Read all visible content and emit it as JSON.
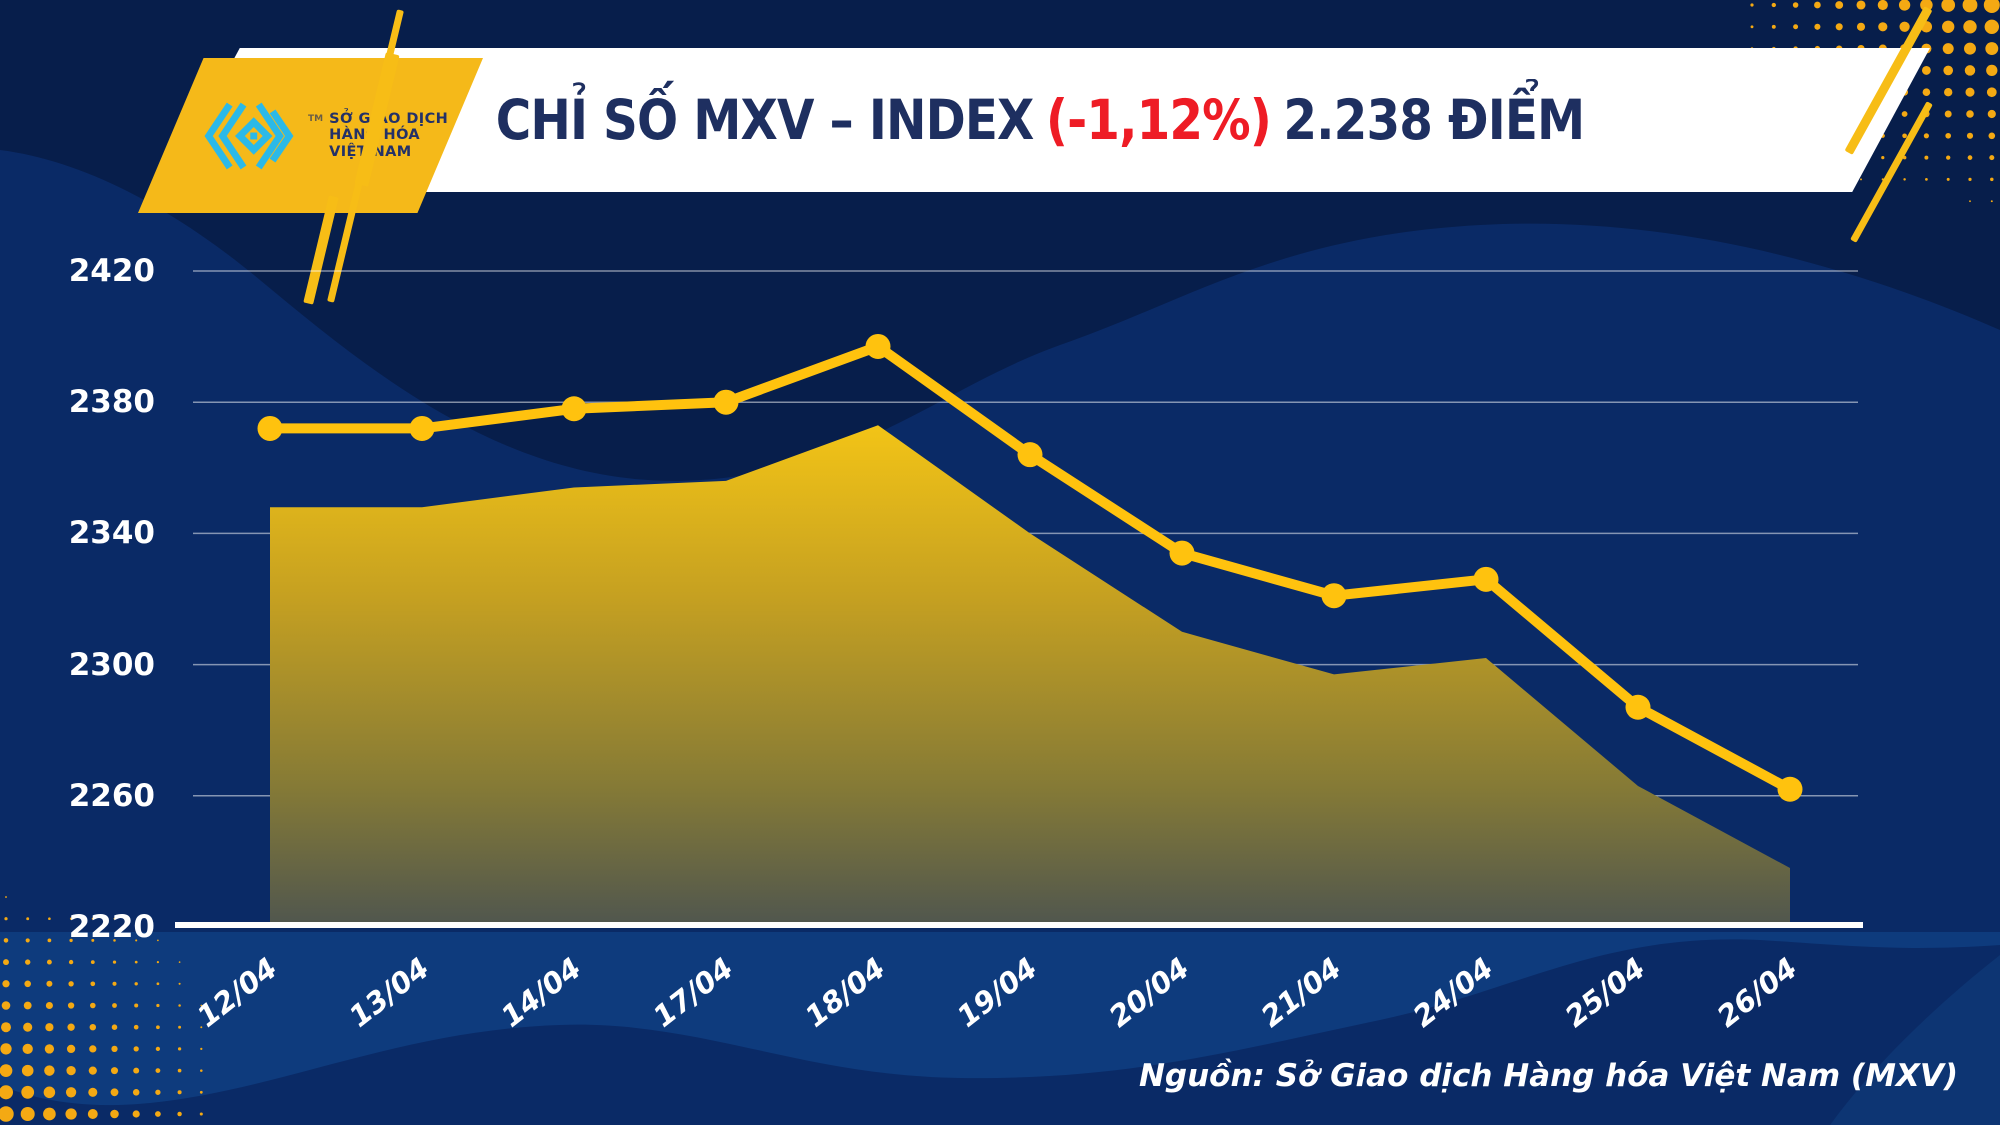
{
  "header": {
    "logo": {
      "tm": "TM",
      "org_lines": [
        "SỞ GIAO DỊCH",
        "HÀNG HÓA",
        "VIỆT NAM"
      ]
    },
    "title": {
      "part1": "CHỈ SỐ MXV – INDEX",
      "part2": "(-1,12%)",
      "part3": "2.238 ĐIỂM"
    }
  },
  "chart_data": {
    "type": "line",
    "title": "CHỈ SỐ MXV – INDEX (-1,12%) 2.238 ĐIỂM",
    "categories": [
      "12/04",
      "13/04",
      "14/04",
      "17/04",
      "18/04",
      "19/04",
      "20/04",
      "21/04",
      "24/04",
      "25/04",
      "26/04"
    ],
    "series": [
      {
        "name": "MXV-Index line (drawn offset +24 points above area)",
        "values": [
          2372,
          2372,
          2378,
          2380,
          2397,
          2364,
          2334,
          2321,
          2326,
          2287,
          2262
        ]
      },
      {
        "name": "MXV-Index shaded area (top edge, ends at 2238)",
        "values": [
          2348,
          2348,
          2354,
          2356,
          2373,
          2340,
          2310,
          2297,
          2302,
          2263,
          2238
        ]
      }
    ],
    "y_ticks": [
      2420,
      2380,
      2340,
      2300,
      2260,
      2220
    ],
    "ylim": [
      2220,
      2440
    ],
    "xlabel": "",
    "ylabel": "",
    "grid": true,
    "legend": false
  },
  "footer": {
    "source": "Nguồn: Sở Giao dịch Hàng hóa Việt Nam (MXV)"
  },
  "colors": {
    "background_navy": "#0A2A66",
    "wave_dark": "#071E4B",
    "wave_light": "#0E3B7D",
    "line_gold": "#FFC20E",
    "area_gradient_top": "#F4C516",
    "area_gradient_bottom": "#4E554F",
    "halftone_gold": "#F4A913",
    "title_navy": "#1E2F60",
    "title_red": "#EE1C25",
    "logo_cyan": "#2BB9E8",
    "logo_badge_gold": "#F5B919",
    "banner_white": "#FFFFFF"
  }
}
